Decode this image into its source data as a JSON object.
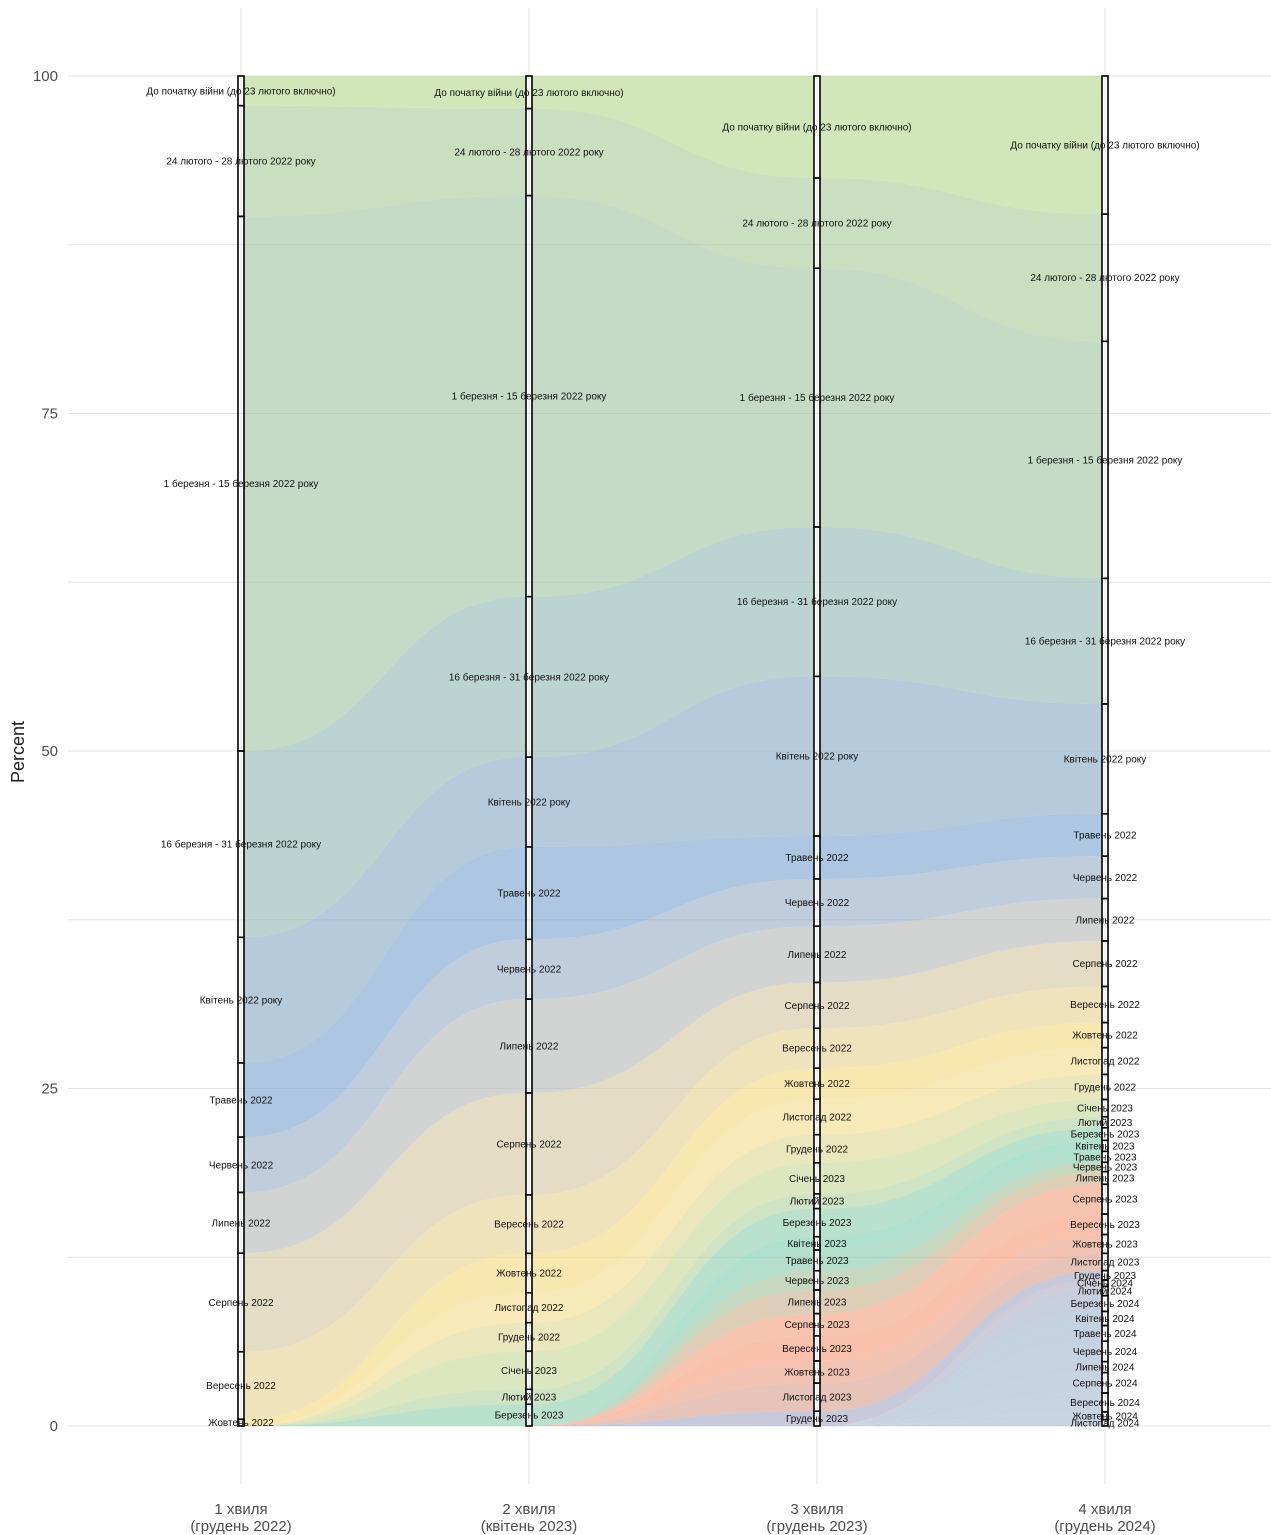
{
  "chart_data": {
    "type": "alluvial",
    "ylabel": "Percent",
    "ylim": [
      0,
      100
    ],
    "yticks": [
      0,
      25,
      50,
      75,
      100
    ],
    "grid": true,
    "legend": "none",
    "axes": [
      {
        "label": [
          "1 хвиля",
          "(грудень 2022)"
        ]
      },
      {
        "label": [
          "2 хвиля",
          "(квітень 2023)"
        ]
      },
      {
        "label": [
          "3 хвиля",
          "(грудень 2023)"
        ]
      },
      {
        "label": [
          "4 хвиля",
          "(грудень 2024)"
        ]
      }
    ],
    "categories": [
      {
        "name": "До початку війни (до 23 лютого включно)",
        "color": "#b5d98f",
        "values": [
          2.2,
          2.4,
          6.9,
          8.8
        ]
      },
      {
        "name": "24 лютого - 28 лютого 2022 року",
        "color": "#a8cc98",
        "values": [
          8.2,
          6.4,
          6.1,
          8.1
        ]
      },
      {
        "name": "1 березня - 15 березня 2022 року",
        "color": "#9fc7a3",
        "values": [
          39.6,
          29.5,
          17.5,
          15.1
        ]
      },
      {
        "name": "16 березня - 31 березня 2022 року",
        "color": "#93b9b4",
        "values": [
          13.8,
          11.8,
          10.1,
          8.0
        ]
      },
      {
        "name": "Квітень 2022 року",
        "color": "#88abc6",
        "values": [
          9.3,
          6.6,
          10.8,
          7.0
        ]
      },
      {
        "name": "Травень 2022",
        "color": "#7aa3cf",
        "values": [
          5.5,
          6.8,
          2.9,
          2.7
        ]
      },
      {
        "name": "Червень 2022",
        "color": "#9aaec6",
        "values": [
          4.1,
          4.4,
          3.2,
          2.7
        ]
      },
      {
        "name": "Липень 2022",
        "color": "#b4bab8",
        "values": [
          4.5,
          6.9,
          3.8,
          2.7
        ]
      },
      {
        "name": "Серпень 2022",
        "color": "#d4c7a2",
        "values": [
          7.3,
          7.5,
          3.1,
          2.9
        ]
      },
      {
        "name": "Вересень 2022",
        "color": "#e6d292",
        "values": [
          5.0,
          4.3,
          2.7,
          2.3
        ]
      },
      {
        "name": "Жовтень 2022",
        "color": "#f5d980",
        "values": [
          0.5,
          2.9,
          2.1,
          1.6
        ]
      },
      {
        "name": "Листопад 2022",
        "color": "#f3dc8e",
        "values": [
          0,
          2.2,
          2.4,
          1.7
        ]
      },
      {
        "name": "Грудень 2022",
        "color": "#dfd894",
        "values": [
          0,
          2.1,
          1.9,
          1.6
        ]
      },
      {
        "name": "Січень 2023",
        "color": "#c6d89a",
        "values": [
          0,
          2.8,
          2.1,
          1.1
        ]
      },
      {
        "name": "Лютий 2023",
        "color": "#b1d4a0",
        "values": [
          0,
          1.1,
          1.0,
          0.7
        ]
      },
      {
        "name": "Березень 2023",
        "color": "#8ecfae",
        "values": [
          0,
          1.6,
          1.9,
          0.8
        ]
      },
      {
        "name": "Квітень 2023",
        "color": "#7fcdb2",
        "values": [
          0,
          0,
          0.9,
          0.7
        ]
      },
      {
        "name": "Травень 2023",
        "color": "#88c9ad",
        "values": [
          0,
          0,
          1.4,
          0.7
        ]
      },
      {
        "name": "Червень 2023",
        "color": "#a3c09a",
        "values": [
          0,
          0,
          1.3,
          0.6
        ]
      },
      {
        "name": "Липень 2023",
        "color": "#c9b08a",
        "values": [
          0,
          0,
          1.6,
          0.8
        ]
      },
      {
        "name": "Серпень 2023",
        "color": "#f2a07e",
        "values": [
          0,
          0,
          1.5,
          1.9
        ]
      },
      {
        "name": "Вересень 2023",
        "color": "#f59a78",
        "values": [
          0,
          0,
          1.7,
          1.3
        ]
      },
      {
        "name": "Жовтень 2023",
        "color": "#ea9d84",
        "values": [
          0,
          0,
          1.5,
          1.2
        ]
      },
      {
        "name": "Листопад 2023",
        "color": "#d9a08e",
        "values": [
          0,
          0,
          1.9,
          1.1
        ]
      },
      {
        "name": "Грудень 2023",
        "color": "#a7a8c4",
        "values": [
          0,
          0,
          1.0,
          0.6
        ]
      },
      {
        "name": "Січень 2024",
        "color": "#b3abbd",
        "values": [
          0,
          0,
          0,
          0.4
        ]
      },
      {
        "name": "Лютий 2024",
        "color": "#aab0c6",
        "values": [
          0,
          0,
          0,
          0.6
        ]
      },
      {
        "name": "Березень 2024",
        "color": "#a4b2cc",
        "values": [
          0,
          0,
          0,
          1.0
        ]
      },
      {
        "name": "Квітень 2024",
        "color": "#a0b4ce",
        "values": [
          0,
          0,
          0,
          0.9
        ]
      },
      {
        "name": "Травень 2024",
        "color": "#9fb5cf",
        "values": [
          0,
          0,
          0,
          1.0
        ]
      },
      {
        "name": "Червень 2024",
        "color": "#a1b6cf",
        "values": [
          0,
          0,
          0,
          1.3
        ]
      },
      {
        "name": "Липень 2024",
        "color": "#a3b7cf",
        "values": [
          0,
          0,
          0,
          0.7
        ]
      },
      {
        "name": "Серпень 2024",
        "color": "#a5b8d0",
        "values": [
          0,
          0,
          0,
          1.3
        ]
      },
      {
        "name": "Вересень 2024",
        "color": "#a7b9d0",
        "values": [
          0,
          0,
          0,
          1.2
        ]
      },
      {
        "name": "Жовтень 2024",
        "color": "#a9bad0",
        "values": [
          0,
          0,
          0,
          0.5
        ]
      },
      {
        "name": "Листопад 2024",
        "color": "#abbbd0",
        "values": [
          0,
          0,
          0,
          0.4
        ]
      }
    ]
  }
}
